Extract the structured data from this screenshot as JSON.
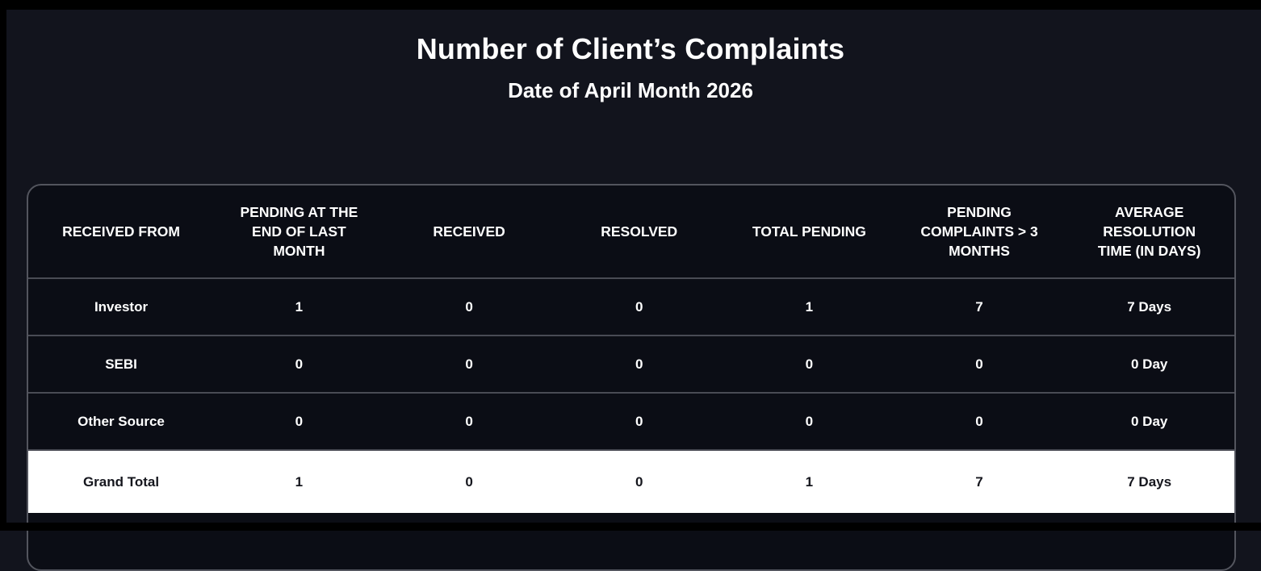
{
  "header": {
    "title": "Number of Client’s Complaints",
    "subtitle": "Date of April Month 2026"
  },
  "table": {
    "columns": [
      "RECEIVED FROM",
      "PENDING AT THE END OF LAST MONTH",
      "RECEIVED",
      "RESOLVED",
      "TOTAL PENDING",
      "PENDING COMPLAINTS > 3 MONTHS",
      "AVERAGE RESOLUTION TIME (IN DAYS)"
    ],
    "rows": [
      {
        "label": "Investor",
        "values": [
          "1",
          "0",
          "0",
          "1",
          "7",
          "7 Days"
        ],
        "highlight": false
      },
      {
        "label": "SEBI",
        "values": [
          "0",
          "0",
          "0",
          "0",
          "0",
          "0 Day"
        ],
        "highlight": false
      },
      {
        "label": "Other Source",
        "values": [
          "0",
          "0",
          "0",
          "0",
          "0",
          "0 Day"
        ],
        "highlight": false
      },
      {
        "label": "Grand Total",
        "values": [
          "1",
          "0",
          "0",
          "1",
          "7",
          "7 Days"
        ],
        "highlight": true
      }
    ]
  },
  "colors": {
    "page_bg": "#12141d",
    "card_bg": "#0b0d15",
    "border": "#53555e",
    "divider": "#494b54",
    "text": "#ffffff",
    "highlight_bg": "#ffffff",
    "highlight_text": "#15161d",
    "frame": "#000000"
  }
}
